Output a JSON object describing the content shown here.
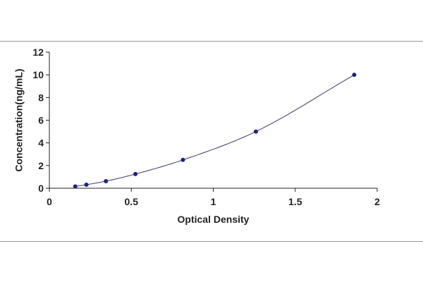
{
  "chart_data": {
    "type": "scatter",
    "title": "",
    "xlabel": "Optical Density",
    "ylabel": "Concentration(ng/mL)",
    "xlim": [
      0,
      2
    ],
    "ylim": [
      0,
      12
    ],
    "x_ticks": [
      "0",
      "0.5",
      "1",
      "1.5",
      "2"
    ],
    "y_ticks": [
      "0",
      "2",
      "4",
      "6",
      "8",
      "10",
      "12"
    ],
    "grid": false,
    "legend": "none",
    "series": [
      {
        "x": [
          0.158,
          0.226,
          0.345,
          0.525,
          0.815,
          1.26,
          1.86
        ],
        "y": [
          0.156,
          0.312,
          0.625,
          1.25,
          2.5,
          5,
          10
        ]
      }
    ],
    "trendline": "fitted curve",
    "colors": {
      "marker": "#1a237e",
      "curve": "#3a3a6a",
      "axis": "#222222"
    }
  }
}
